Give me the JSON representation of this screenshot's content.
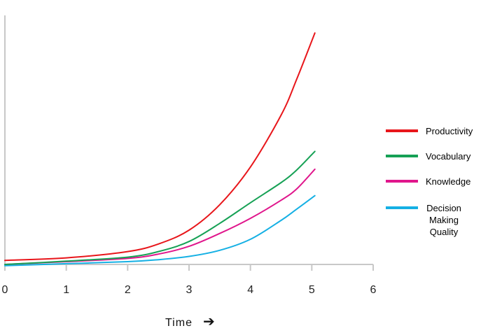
{
  "chart_data": {
    "type": "line",
    "title": "",
    "xlabel": "Time",
    "xlabel_arrow": "➔",
    "ylabel": "",
    "xlim": [
      0,
      6
    ],
    "ylim": [
      0,
      1
    ],
    "x_ticks": [
      "0",
      "1",
      "2",
      "3",
      "4",
      "5",
      "6"
    ],
    "grid": false,
    "legend_position": "right",
    "series": [
      {
        "name": "Productivity",
        "color": "#e8161b",
        "points": [
          [
            0,
            0.016
          ],
          [
            1,
            0.026
          ],
          [
            2,
            0.051
          ],
          [
            2.5,
            0.081
          ],
          [
            3,
            0.136
          ],
          [
            3.5,
            0.237
          ],
          [
            4,
            0.387
          ],
          [
            4.5,
            0.593
          ],
          [
            4.75,
            0.733
          ],
          [
            5.05,
            0.919
          ]
        ]
      },
      {
        "name": "Vocabulary",
        "color": "#16a155",
        "points": [
          [
            0,
            0.0
          ],
          [
            1,
            0.013
          ],
          [
            2,
            0.029
          ],
          [
            2.5,
            0.051
          ],
          [
            3,
            0.091
          ],
          [
            3.5,
            0.163
          ],
          [
            4,
            0.245
          ],
          [
            4.5,
            0.325
          ],
          [
            4.75,
            0.374
          ],
          [
            5.05,
            0.449
          ]
        ]
      },
      {
        "name": "Knowledge",
        "color": "#e0168c",
        "points": [
          [
            0,
            0.0
          ],
          [
            1,
            0.011
          ],
          [
            2,
            0.024
          ],
          [
            2.5,
            0.041
          ],
          [
            3,
            0.072
          ],
          [
            3.5,
            0.123
          ],
          [
            4,
            0.183
          ],
          [
            4.5,
            0.255
          ],
          [
            4.75,
            0.299
          ],
          [
            5.05,
            0.378
          ]
        ]
      },
      {
        "name": "Decision\nMaking\nQuality",
        "color": "#15b0e4",
        "points": [
          [
            0,
            -0.005
          ],
          [
            1,
            0.003
          ],
          [
            2,
            0.011
          ],
          [
            2.5,
            0.019
          ],
          [
            3,
            0.032
          ],
          [
            3.5,
            0.056
          ],
          [
            4,
            0.1
          ],
          [
            4.5,
            0.175
          ],
          [
            4.75,
            0.219
          ],
          [
            5.05,
            0.273
          ]
        ]
      }
    ]
  }
}
